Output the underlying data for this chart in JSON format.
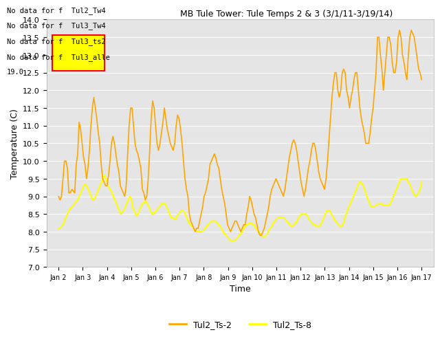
{
  "title": "MB Tule Tower: Tule Temps 2 & 3 (3/1/11-3/19/14)",
  "xlabel": "Time",
  "ylabel": "Temperature (C)",
  "ylim": [
    7.0,
    14.0
  ],
  "yticks": [
    7.0,
    7.5,
    8.0,
    8.5,
    9.0,
    9.5,
    10.0,
    10.5,
    11.0,
    11.5,
    12.0,
    12.5,
    13.0,
    13.5,
    14.0
  ],
  "xtick_labels": [
    "Jan 2",
    "Jan 3",
    "Jan 4",
    "Jan 5",
    "Jan 6",
    "Jan 7",
    "Jan 8",
    "Jan 9",
    "Jan 10",
    "Jan 11",
    "Jan 12",
    "Jan 13",
    "Jan 14",
    "Jan 15",
    "Jan 16",
    "Jan 17"
  ],
  "color_orange": "#FFA500",
  "color_yellow": "#FFFF00",
  "legend_labels": [
    "Tul2_Ts-2",
    "Tul2_Ts-8"
  ],
  "legend_colors": [
    "#FFA500",
    "#FFFF00"
  ],
  "bg_color": "#E5E5E5",
  "annotation_lines": [
    "No data for f  Tul2_Tw4",
    "No data for f  Tul3_Tw4",
    "No data for f  Tul3_ts2",
    "No data for f  Tul3_alle"
  ],
  "annotation_y_label": "19.0",
  "ts2": [
    9.0,
    8.9,
    9.0,
    9.5,
    10.0,
    10.0,
    9.8,
    9.1,
    9.1,
    9.2,
    9.15,
    9.1,
    9.9,
    10.2,
    11.1,
    10.9,
    10.5,
    10.1,
    9.9,
    9.5,
    9.8,
    10.3,
    11.0,
    11.5,
    11.8,
    11.5,
    11.2,
    10.8,
    10.5,
    9.9,
    9.5,
    9.4,
    9.3,
    9.3,
    9.6,
    10.0,
    10.5,
    10.7,
    10.5,
    10.2,
    9.9,
    9.7,
    9.3,
    9.2,
    9.1,
    9.0,
    9.3,
    10.2,
    11.0,
    11.5,
    11.5,
    11.0,
    10.5,
    10.3,
    10.2,
    10.0,
    9.8,
    9.2,
    9.1,
    8.9,
    9.0,
    9.5,
    10.3,
    11.2,
    11.7,
    11.5,
    11.0,
    10.5,
    10.3,
    10.5,
    10.8,
    11.1,
    11.5,
    11.2,
    10.9,
    10.7,
    10.5,
    10.4,
    10.3,
    10.5,
    11.0,
    11.3,
    11.2,
    10.9,
    10.5,
    10.0,
    9.5,
    9.2,
    9.0,
    8.5,
    8.3,
    8.2,
    8.1,
    8.0,
    8.1,
    8.1,
    8.3,
    8.5,
    8.7,
    9.0,
    9.1,
    9.3,
    9.5,
    9.9,
    10.0,
    10.1,
    10.2,
    10.1,
    9.9,
    9.8,
    9.5,
    9.2,
    9.0,
    8.8,
    8.5,
    8.2,
    8.1,
    8.0,
    8.1,
    8.2,
    8.3,
    8.3,
    8.2,
    8.1,
    8.0,
    8.1,
    8.2,
    8.2,
    8.5,
    8.7,
    9.0,
    8.9,
    8.7,
    8.5,
    8.4,
    8.2,
    8.0,
    7.9,
    7.9,
    8.0,
    8.1,
    8.3,
    8.5,
    8.7,
    9.0,
    9.2,
    9.3,
    9.4,
    9.5,
    9.4,
    9.3,
    9.2,
    9.1,
    9.0,
    9.2,
    9.5,
    9.8,
    10.1,
    10.3,
    10.5,
    10.6,
    10.5,
    10.3,
    10.0,
    9.7,
    9.4,
    9.2,
    9.0,
    9.2,
    9.5,
    9.8,
    10.0,
    10.3,
    10.5,
    10.5,
    10.3,
    10.0,
    9.7,
    9.5,
    9.4,
    9.3,
    9.2,
    9.5,
    10.0,
    10.6,
    11.2,
    11.8,
    12.2,
    12.5,
    12.5,
    12.0,
    11.8,
    12.0,
    12.5,
    12.6,
    12.5,
    12.0,
    11.8,
    11.5,
    11.8,
    12.0,
    12.3,
    12.5,
    12.5,
    12.0,
    11.5,
    11.2,
    11.0,
    10.8,
    10.5,
    10.5,
    10.5,
    10.8,
    11.2,
    11.5,
    12.0,
    12.5,
    13.5,
    13.5,
    13.0,
    12.6,
    12.0,
    12.5,
    13.0,
    13.5,
    13.5,
    13.3,
    12.8,
    12.5,
    12.5,
    12.8,
    13.5,
    13.7,
    13.5,
    13.0,
    12.8,
    12.5,
    12.3,
    13.0,
    13.5,
    13.7,
    13.6,
    13.5,
    13.2,
    12.9,
    12.6,
    12.5,
    12.3
  ],
  "ts8": [
    8.1,
    8.1,
    8.15,
    8.2,
    8.3,
    8.4,
    8.5,
    8.6,
    8.65,
    8.7,
    8.75,
    8.8,
    8.85,
    8.9,
    9.0,
    9.1,
    9.2,
    9.3,
    9.35,
    9.3,
    9.2,
    9.1,
    9.0,
    8.9,
    8.9,
    9.0,
    9.1,
    9.2,
    9.3,
    9.4,
    9.5,
    9.6,
    9.5,
    9.35,
    9.25,
    9.2,
    9.1,
    9.0,
    8.9,
    8.8,
    8.7,
    8.6,
    8.5,
    8.55,
    8.6,
    8.7,
    8.8,
    8.9,
    9.0,
    8.95,
    8.7,
    8.6,
    8.5,
    8.45,
    8.55,
    8.65,
    8.75,
    8.8,
    8.85,
    8.85,
    8.8,
    8.7,
    8.6,
    8.5,
    8.5,
    8.55,
    8.6,
    8.65,
    8.7,
    8.75,
    8.8,
    8.8,
    8.8,
    8.7,
    8.6,
    8.5,
    8.4,
    8.4,
    8.35,
    8.35,
    8.45,
    8.5,
    8.55,
    8.6,
    8.6,
    8.55,
    8.45,
    8.35,
    8.25,
    8.2,
    8.15,
    8.1,
    8.05,
    8.0,
    8.0,
    8.0,
    8.0,
    8.0,
    8.05,
    8.1,
    8.15,
    8.2,
    8.25,
    8.3,
    8.3,
    8.3,
    8.3,
    8.25,
    8.2,
    8.15,
    8.1,
    8.0,
    7.95,
    7.9,
    7.85,
    7.8,
    7.75,
    7.75,
    7.75,
    7.75,
    7.8,
    7.85,
    7.9,
    7.95,
    8.0,
    8.1,
    8.15,
    8.2,
    8.2,
    8.25,
    8.25,
    8.2,
    8.2,
    8.1,
    8.05,
    8.0,
    7.95,
    7.9,
    7.85,
    7.85,
    7.9,
    7.95,
    8.05,
    8.1,
    8.15,
    8.25,
    8.3,
    8.35,
    8.4,
    8.4,
    8.4,
    8.4,
    8.4,
    8.35,
    8.3,
    8.25,
    8.2,
    8.15,
    8.15,
    8.2,
    8.25,
    8.3,
    8.4,
    8.45,
    8.5,
    8.5,
    8.5,
    8.5,
    8.45,
    8.35,
    8.3,
    8.25,
    8.2,
    8.2,
    8.15,
    8.15,
    8.15,
    8.2,
    8.3,
    8.4,
    8.5,
    8.6,
    8.6,
    8.6,
    8.5,
    8.45,
    8.35,
    8.3,
    8.25,
    8.2,
    8.15,
    8.15,
    8.2,
    8.35,
    8.5,
    8.6,
    8.7,
    8.8,
    8.9,
    9.0,
    9.1,
    9.2,
    9.3,
    9.4,
    9.4,
    9.35,
    9.25,
    9.15,
    9.0,
    8.9,
    8.8,
    8.7,
    8.7,
    8.7,
    8.75,
    8.75,
    8.8,
    8.8,
    8.8,
    8.75,
    8.75,
    8.75,
    8.75,
    8.75,
    8.8,
    8.9,
    9.0,
    9.1,
    9.2,
    9.3,
    9.4,
    9.5,
    9.5,
    9.5,
    9.5,
    9.5,
    9.4,
    9.35,
    9.25,
    9.15,
    9.05,
    9.0,
    9.05,
    9.1,
    9.2,
    9.4
  ]
}
